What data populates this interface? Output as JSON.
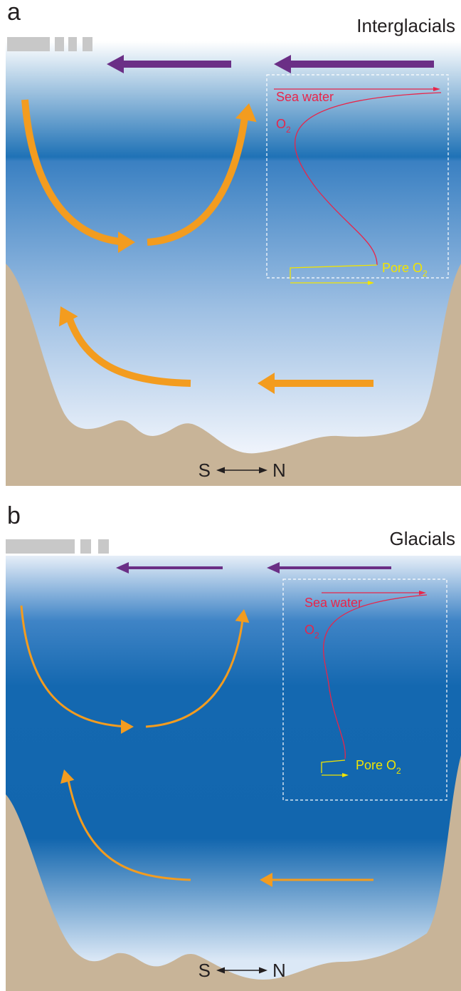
{
  "panels": [
    {
      "label": "a",
      "title": "Interglacials",
      "sea_water": "Sea water",
      "sea_o2": {
        "main": "O",
        "sub": "2"
      },
      "pore_o2": {
        "main": "Pore O",
        "sub": "2"
      },
      "south": "S",
      "north": "N"
    },
    {
      "label": "b",
      "title": "Glacials",
      "sea_water": "Sea water",
      "sea_o2": {
        "main": "O",
        "sub": "2"
      },
      "pore_o2": {
        "main": "Pore O",
        "sub": "2"
      },
      "south": "S",
      "north": "N"
    }
  ]
}
